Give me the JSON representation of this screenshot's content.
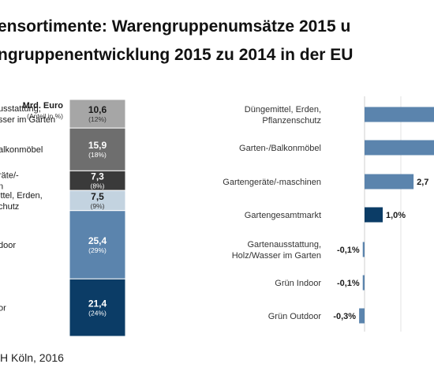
{
  "title_line1": "ensortimente: Warengruppenumsätze 2015 u",
  "title_line2": "ngruppenentwicklung 2015 zu 2014 in der EU",
  "source": "H Köln, 2016",
  "chart_data": [
    {
      "type": "bar",
      "stacked": true,
      "unit_label": "Mrd. Euro",
      "share_label": "(Anteil in %)",
      "segments": [
        {
          "category": "Grün Outdoor",
          "label_lines": [
            "or"
          ],
          "value": 21.4,
          "value_text": "21,4",
          "share_text": "(24%)",
          "color": "#0b3c66",
          "text_color": "#ffffff",
          "share_color": "#ffffff"
        },
        {
          "category": "Grün Indoor",
          "label_lines": [
            "door"
          ],
          "value": 25.4,
          "value_text": "25,4",
          "share_text": "(29%)",
          "color": "#5b84ad",
          "text_color": "#ffffff",
          "share_color": "#ffffff"
        },
        {
          "category": "Düngemittel, Erden, Pflanzenschutz",
          "label_lines": [
            "ittel, Erden,",
            "chutz"
          ],
          "value": 7.5,
          "value_text": "7,5",
          "share_text": "(9%)",
          "color": "#c3d3e0",
          "text_color": "#1a1a1a",
          "share_color": "#333333"
        },
        {
          "category": "Gartengeräte/-maschinen",
          "label_lines": [
            "räte/-",
            "n"
          ],
          "value": 7.3,
          "value_text": "7,3",
          "share_text": "(8%)",
          "color": "#3a3a3a",
          "text_color": "#ffffff",
          "share_color": "#ffffff"
        },
        {
          "category": "Garten-/Balkonmöbel",
          "label_lines": [
            "alkonmöbel"
          ],
          "value": 15.9,
          "value_text": "15,9",
          "share_text": "(18%)",
          "color": "#6e6e6e",
          "text_color": "#ffffff",
          "share_color": "#ffffff"
        },
        {
          "category": "Gartenausstattung, Holz/Wasser im Garten",
          "label_lines": [
            "usstattung,",
            "sser im Garten"
          ],
          "value": 10.6,
          "value_text": "10,6",
          "share_text": "(12%)",
          "color": "#a6a6a6",
          "text_color": "#1a1a1a",
          "share_color": "#333333"
        }
      ]
    },
    {
      "type": "bar",
      "orientation": "horizontal",
      "categories": [
        {
          "name_lines": [
            "Düngemittel, Erden,",
            "Pflanzenschutz"
          ],
          "value": null,
          "value_text": "",
          "color": "#5b84ad"
        },
        {
          "name_lines": [
            "Garten-/Balkonmöbel"
          ],
          "value": null,
          "value_text": "",
          "color": "#5b84ad"
        },
        {
          "name_lines": [
            "Gartengeräte/-maschinen"
          ],
          "value": 2.7,
          "value_text": "2,7",
          "color": "#5b84ad"
        },
        {
          "name_lines": [
            "Gartengesamtmarkt"
          ],
          "value": 1.0,
          "value_text": "1,0%",
          "color": "#0b3c66"
        },
        {
          "name_lines": [
            "Gartenausstattung,",
            "Holz/Wasser im Garten"
          ],
          "value": -0.1,
          "value_text": "-0,1%",
          "color": "#5b84ad"
        },
        {
          "name_lines": [
            "Grün Indoor"
          ],
          "value": -0.1,
          "value_text": "-0,1%",
          "color": "#5b84ad"
        },
        {
          "name_lines": [
            "Grün Outdoor"
          ],
          "value": -0.3,
          "value_text": "-0,3%",
          "color": "#5b84ad"
        }
      ]
    }
  ]
}
